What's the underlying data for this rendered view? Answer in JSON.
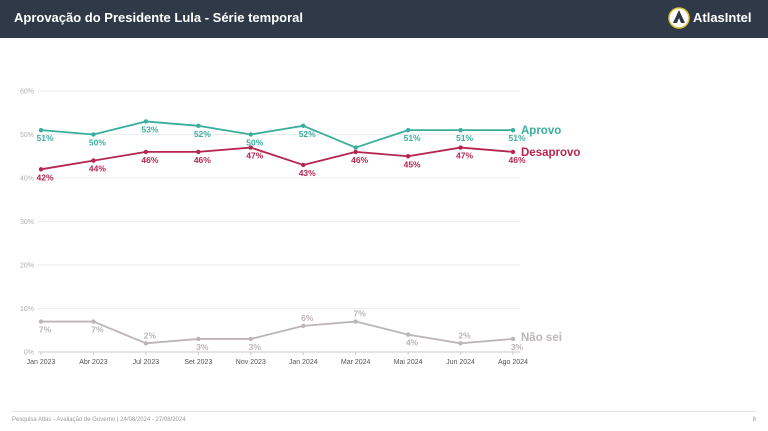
{
  "header": {
    "title": "Aprovação do Presidente Lula - Série temporal",
    "brand": "AtlasIntel",
    "brand_icon": "atlas-globe-icon"
  },
  "footer": {
    "text": "Pesquisa Atlas - Avaliação de Governo | 24/08/2024 - 27/08/2024",
    "page": "8"
  },
  "chart_data": {
    "type": "line",
    "categories": [
      "Jan 2023",
      "Abr 2023",
      "Jul 2023",
      "Set 2023",
      "Nov 2023",
      "Jan 2024",
      "Mar 2024",
      "Mai 2024",
      "Jun 2024",
      "Ago 2024"
    ],
    "y_ticks": [
      "0%",
      "10%",
      "20%",
      "30%",
      "40%",
      "50%",
      "60%"
    ],
    "ylim": [
      0,
      60
    ],
    "grid": true,
    "legend": "end-of-line labels, right",
    "series": [
      {
        "name": "Aprovo",
        "color": "#3aae9c",
        "values": [
          51,
          50,
          53,
          52,
          50,
          52,
          47,
          51,
          51,
          51
        ],
        "labels": [
          "51%",
          "50%",
          "53%",
          "52%",
          "50%",
          "52%",
          "",
          "51%",
          "51%",
          "51%"
        ],
        "label_pos": [
          "below",
          "below",
          "below",
          "below",
          "below",
          "below",
          "below",
          "below",
          "below",
          "below"
        ]
      },
      {
        "name": "Desaprovo",
        "color": "#b5254f",
        "values": [
          42,
          44,
          46,
          46,
          47,
          43,
          46,
          45,
          47,
          46
        ],
        "labels": [
          "42%",
          "44%",
          "46%",
          "46%",
          "47%",
          "43%",
          "46%",
          "45%",
          "47%",
          "46%"
        ],
        "label_pos": [
          "below",
          "below",
          "below",
          "below",
          "below",
          "below",
          "below",
          "below",
          "below",
          "below"
        ]
      },
      {
        "name": "Não sei",
        "color": "#bdb5b7",
        "values": [
          7,
          7,
          2,
          3,
          3,
          6,
          7,
          4,
          2,
          3
        ],
        "labels": [
          "7%",
          "7%",
          "2%",
          "3%",
          "3%",
          "6%",
          "7%",
          "4%",
          "2%",
          "3%"
        ],
        "label_pos": [
          "below",
          "below",
          "above",
          "below",
          "below",
          "above",
          "above",
          "below",
          "above",
          "below"
        ]
      }
    ]
  }
}
